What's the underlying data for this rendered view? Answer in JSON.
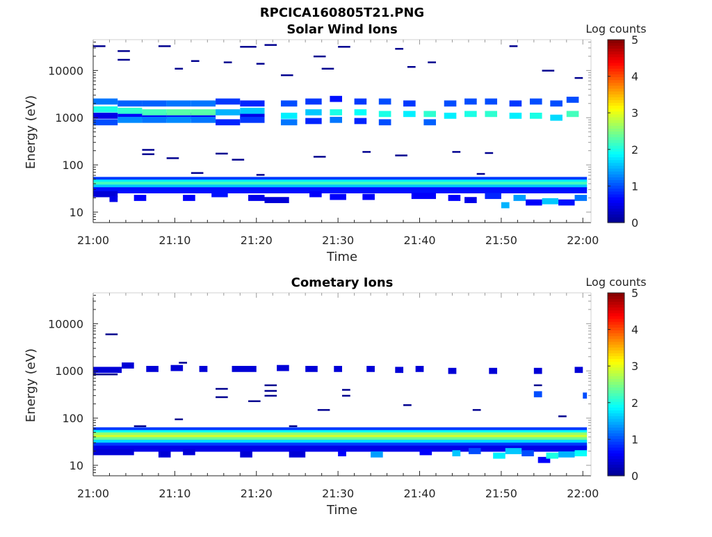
{
  "figure_title": "RPCICA160805T21.PNG",
  "colormap": [
    "#00008f",
    "#0000ff",
    "#0080ff",
    "#00ffff",
    "#80ff80",
    "#ffff00",
    "#ff8000",
    "#ff0000",
    "#800000"
  ],
  "chart_data": [
    {
      "type": "heatmap",
      "title": "Solar Wind Ions",
      "xlabel": "Time",
      "ylabel": "Energy (eV)",
      "xticks": [
        "21:00",
        "21:10",
        "21:20",
        "21:30",
        "21:40",
        "21:50",
        "22:00"
      ],
      "yticks": [
        "10",
        "100",
        "1000",
        "10000"
      ],
      "ytick_values": [
        10,
        100,
        1000,
        10000
      ],
      "xlim_minutes": [
        0,
        61
      ],
      "ylim": [
        6,
        45000
      ],
      "yscale": "log",
      "colorbar": {
        "label": "Log counts",
        "ticks": [
          "0",
          "1",
          "2",
          "3",
          "4",
          "5"
        ],
        "range": [
          0,
          5
        ]
      },
      "cells": [
        [
          0,
          3,
          1100,
          0.5
        ],
        [
          0,
          3,
          2200,
          1.2
        ],
        [
          0,
          3,
          1500,
          2.0
        ],
        [
          0,
          3,
          800,
          1.0
        ],
        [
          3,
          6,
          1100,
          0.6
        ],
        [
          3,
          6,
          2000,
          1.1
        ],
        [
          3,
          6,
          1400,
          2.1
        ],
        [
          3,
          6,
          900,
          1.3
        ],
        [
          6,
          9,
          1100,
          0.6
        ],
        [
          6,
          9,
          2000,
          1.1
        ],
        [
          6,
          9,
          1300,
          2.2
        ],
        [
          6,
          9,
          900,
          1.2
        ],
        [
          9,
          12,
          1100,
          0.7
        ],
        [
          9,
          12,
          2000,
          1.2
        ],
        [
          9,
          12,
          1300,
          2.3
        ],
        [
          9,
          12,
          900,
          1.3
        ],
        [
          12,
          15,
          1100,
          0.6
        ],
        [
          12,
          15,
          2000,
          1.2
        ],
        [
          12,
          15,
          1300,
          2.3
        ],
        [
          12,
          15,
          900,
          1.2
        ],
        [
          15,
          18,
          1300,
          1.5
        ],
        [
          15,
          18,
          2200,
          0.9
        ],
        [
          15,
          18,
          800,
          0.8
        ],
        [
          18,
          21,
          1100,
          0.5
        ],
        [
          18,
          21,
          2000,
          0.8
        ],
        [
          18,
          21,
          1400,
          1.6
        ],
        [
          18,
          21,
          900,
          0.9
        ],
        [
          23,
          25,
          1100,
          1.8
        ],
        [
          23,
          25,
          2000,
          1.0
        ],
        [
          23,
          25,
          800,
          1.2
        ],
        [
          26,
          28,
          1300,
          1.6
        ],
        [
          26,
          28,
          2200,
          0.9
        ],
        [
          26,
          28,
          850,
          0.8
        ],
        [
          29,
          30.5,
          1300,
          2.0
        ],
        [
          29,
          30.5,
          900,
          1.2
        ],
        [
          29,
          30.5,
          2500,
          0.7
        ],
        [
          32,
          33.5,
          1300,
          1.9
        ],
        [
          32,
          33.5,
          2200,
          0.9
        ],
        [
          32,
          33.5,
          850,
          0.8
        ],
        [
          35,
          36.5,
          1200,
          2.0
        ],
        [
          35,
          36.5,
          2200,
          1.0
        ],
        [
          35,
          36.5,
          800,
          1.0
        ],
        [
          38,
          39.5,
          1200,
          1.8
        ],
        [
          38,
          39.5,
          2000,
          0.9
        ],
        [
          40.5,
          42,
          1200,
          2.1
        ],
        [
          40.5,
          42,
          800,
          1.1
        ],
        [
          43,
          44.5,
          1100,
          1.8
        ],
        [
          43,
          44.5,
          2000,
          1.0
        ],
        [
          45.5,
          47,
          1200,
          2.0
        ],
        [
          45.5,
          47,
          2200,
          1.0
        ],
        [
          48,
          49.5,
          1200,
          2.1
        ],
        [
          48,
          49.5,
          2200,
          1.0
        ],
        [
          51,
          52.5,
          1100,
          1.8
        ],
        [
          51,
          52.5,
          2000,
          0.9
        ],
        [
          53.5,
          55,
          1100,
          2.0
        ],
        [
          53.5,
          55,
          2200,
          1.0
        ],
        [
          56,
          57.5,
          1000,
          1.7
        ],
        [
          56,
          57.5,
          2000,
          1.0
        ],
        [
          58,
          59.5,
          1200,
          2.2
        ],
        [
          58,
          59.5,
          2400,
          1.0
        ],
        [
          0,
          60.5,
          48,
          0.9
        ],
        [
          0,
          60.5,
          42,
          1.8
        ],
        [
          0,
          60.5,
          38,
          2.2
        ],
        [
          0,
          60.5,
          33,
          1.6
        ],
        [
          0,
          60.5,
          29,
          0.7
        ],
        [
          0,
          3,
          24,
          0.4
        ],
        [
          2,
          3,
          19,
          0.5
        ],
        [
          5,
          6.5,
          20,
          0.6
        ],
        [
          11,
          12.5,
          20,
          0.6
        ],
        [
          14.5,
          16.5,
          24,
          0.7
        ],
        [
          19,
          21,
          20,
          0.5
        ],
        [
          21,
          24,
          18,
          0.4
        ],
        [
          26.5,
          28,
          24,
          0.6
        ],
        [
          29,
          31,
          21,
          0.6
        ],
        [
          33,
          34.5,
          21,
          0.6
        ],
        [
          39,
          42,
          22,
          0.6
        ],
        [
          43.5,
          45,
          20,
          0.6
        ],
        [
          45.5,
          47,
          18,
          0.5
        ],
        [
          48,
          50,
          22,
          0.8
        ],
        [
          50,
          51,
          14,
          1.5
        ],
        [
          51.5,
          53,
          20,
          1.4
        ],
        [
          53,
          55,
          16,
          0.6
        ],
        [
          55,
          57,
          17,
          1.6
        ],
        [
          57,
          59,
          16,
          0.7
        ],
        [
          59,
          60.5,
          20,
          1.2
        ]
      ],
      "ticks": [
        [
          0,
          1.5,
          33000
        ],
        [
          3,
          4.5,
          26000
        ],
        [
          3,
          4.5,
          17000
        ],
        [
          8,
          9.5,
          33000
        ],
        [
          18,
          20,
          32000
        ],
        [
          21,
          22.5,
          35000
        ],
        [
          27,
          28.5,
          20000
        ],
        [
          30,
          31.5,
          32000
        ],
        [
          37,
          38,
          29000
        ],
        [
          51,
          52,
          33000
        ],
        [
          10,
          11,
          11000
        ],
        [
          12,
          13,
          16000
        ],
        [
          16,
          17,
          15000
        ],
        [
          20,
          21,
          14000
        ],
        [
          23,
          24.5,
          8000
        ],
        [
          28,
          29.5,
          11000
        ],
        [
          38.5,
          39.5,
          12000
        ],
        [
          41,
          42,
          15000
        ],
        [
          55,
          56.5,
          10000
        ],
        [
          59,
          60,
          7000
        ],
        [
          6,
          7.5,
          210
        ],
        [
          6,
          7.5,
          170
        ],
        [
          9,
          10.5,
          140
        ],
        [
          15,
          16.5,
          175
        ],
        [
          17,
          18.5,
          130
        ],
        [
          27,
          28.5,
          150
        ],
        [
          33,
          34,
          190
        ],
        [
          37,
          38.5,
          160
        ],
        [
          44,
          45,
          190
        ],
        [
          48,
          49,
          180
        ],
        [
          12,
          13.5,
          68
        ],
        [
          20,
          21,
          62
        ],
        [
          47,
          48,
          65
        ]
      ]
    },
    {
      "type": "heatmap",
      "title": "Cometary Ions",
      "xlabel": "Time",
      "ylabel": "Energy (eV)",
      "xticks": [
        "21:00",
        "21:10",
        "21:20",
        "21:30",
        "21:40",
        "21:50",
        "22:00"
      ],
      "yticks": [
        "10",
        "100",
        "1000",
        "10000"
      ],
      "ytick_values": [
        10,
        100,
        1000,
        10000
      ],
      "xlim_minutes": [
        0,
        61
      ],
      "ylim": [
        6,
        45000
      ],
      "yscale": "log",
      "colorbar": {
        "label": "Log counts",
        "ticks": [
          "0",
          "1",
          "2",
          "3",
          "4",
          "5"
        ],
        "range": [
          0,
          5
        ]
      },
      "cells": [
        [
          0,
          3.5,
          1050,
          0.4
        ],
        [
          3.5,
          5,
          1300,
          0.4
        ],
        [
          6.5,
          8,
          1100,
          0.4
        ],
        [
          9.5,
          11,
          1150,
          0.4
        ],
        [
          13,
          14,
          1100,
          0.4
        ],
        [
          17,
          20,
          1100,
          0.4
        ],
        [
          22.5,
          24,
          1150,
          0.4
        ],
        [
          26,
          27.5,
          1100,
          0.4
        ],
        [
          29.5,
          30.5,
          1100,
          0.4
        ],
        [
          33.5,
          34.5,
          1100,
          0.4
        ],
        [
          37,
          38,
          1050,
          0.4
        ],
        [
          39.5,
          40.5,
          1100,
          0.4
        ],
        [
          43.5,
          44.5,
          1000,
          0.4
        ],
        [
          48.5,
          49.5,
          1000,
          0.4
        ],
        [
          54,
          55,
          1000,
          0.4
        ],
        [
          59,
          60,
          1050,
          0.4
        ],
        [
          54,
          55,
          320,
          1.0
        ],
        [
          60,
          60.5,
          300,
          1.0
        ],
        [
          0,
          60.5,
          55,
          0.9
        ],
        [
          0,
          60.5,
          48,
          1.9
        ],
        [
          0,
          60.5,
          43,
          2.6
        ],
        [
          0,
          60.5,
          38,
          2.9
        ],
        [
          0,
          60.5,
          34,
          2.4
        ],
        [
          0,
          60.5,
          30,
          1.7
        ],
        [
          0,
          60.5,
          26,
          0.9
        ],
        [
          0,
          60.5,
          22.5,
          0.5
        ],
        [
          0,
          5,
          19,
          0.4
        ],
        [
          8,
          9.5,
          17,
          0.4
        ],
        [
          11,
          12.5,
          19,
          0.4
        ],
        [
          18,
          19.5,
          17,
          0.4
        ],
        [
          24,
          26,
          17,
          0.4
        ],
        [
          30,
          31,
          18,
          0.6
        ],
        [
          34,
          35.5,
          17,
          1.4
        ],
        [
          40,
          41.5,
          19,
          0.6
        ],
        [
          44,
          45,
          18,
          1.6
        ],
        [
          46,
          47.5,
          20,
          1.0
        ],
        [
          49,
          50.5,
          16,
          1.8
        ],
        [
          50.5,
          52.5,
          20,
          1.6
        ],
        [
          52.5,
          54,
          18,
          1.0
        ],
        [
          54.5,
          56,
          13,
          0.6
        ],
        [
          55.5,
          57,
          16,
          2.0
        ],
        [
          57,
          59,
          17,
          1.5
        ],
        [
          59,
          60.5,
          18,
          1.9
        ]
      ],
      "ticks": [
        [
          1.5,
          3,
          6000
        ],
        [
          0,
          3,
          850
        ],
        [
          10.5,
          11.5,
          1500
        ],
        [
          15,
          16.5,
          420
        ],
        [
          15,
          16.5,
          280
        ],
        [
          19,
          20.5,
          230
        ],
        [
          21,
          22.5,
          500
        ],
        [
          21,
          22.5,
          380
        ],
        [
          21,
          22.5,
          300
        ],
        [
          27.5,
          29,
          150
        ],
        [
          30.5,
          31.5,
          400
        ],
        [
          30.5,
          31.5,
          300
        ],
        [
          38,
          39,
          190
        ],
        [
          46.5,
          47.5,
          150
        ],
        [
          54,
          55,
          500
        ],
        [
          57,
          58,
          110
        ],
        [
          10,
          11,
          95
        ],
        [
          5,
          6.5,
          68
        ],
        [
          24,
          25,
          68
        ]
      ]
    }
  ]
}
